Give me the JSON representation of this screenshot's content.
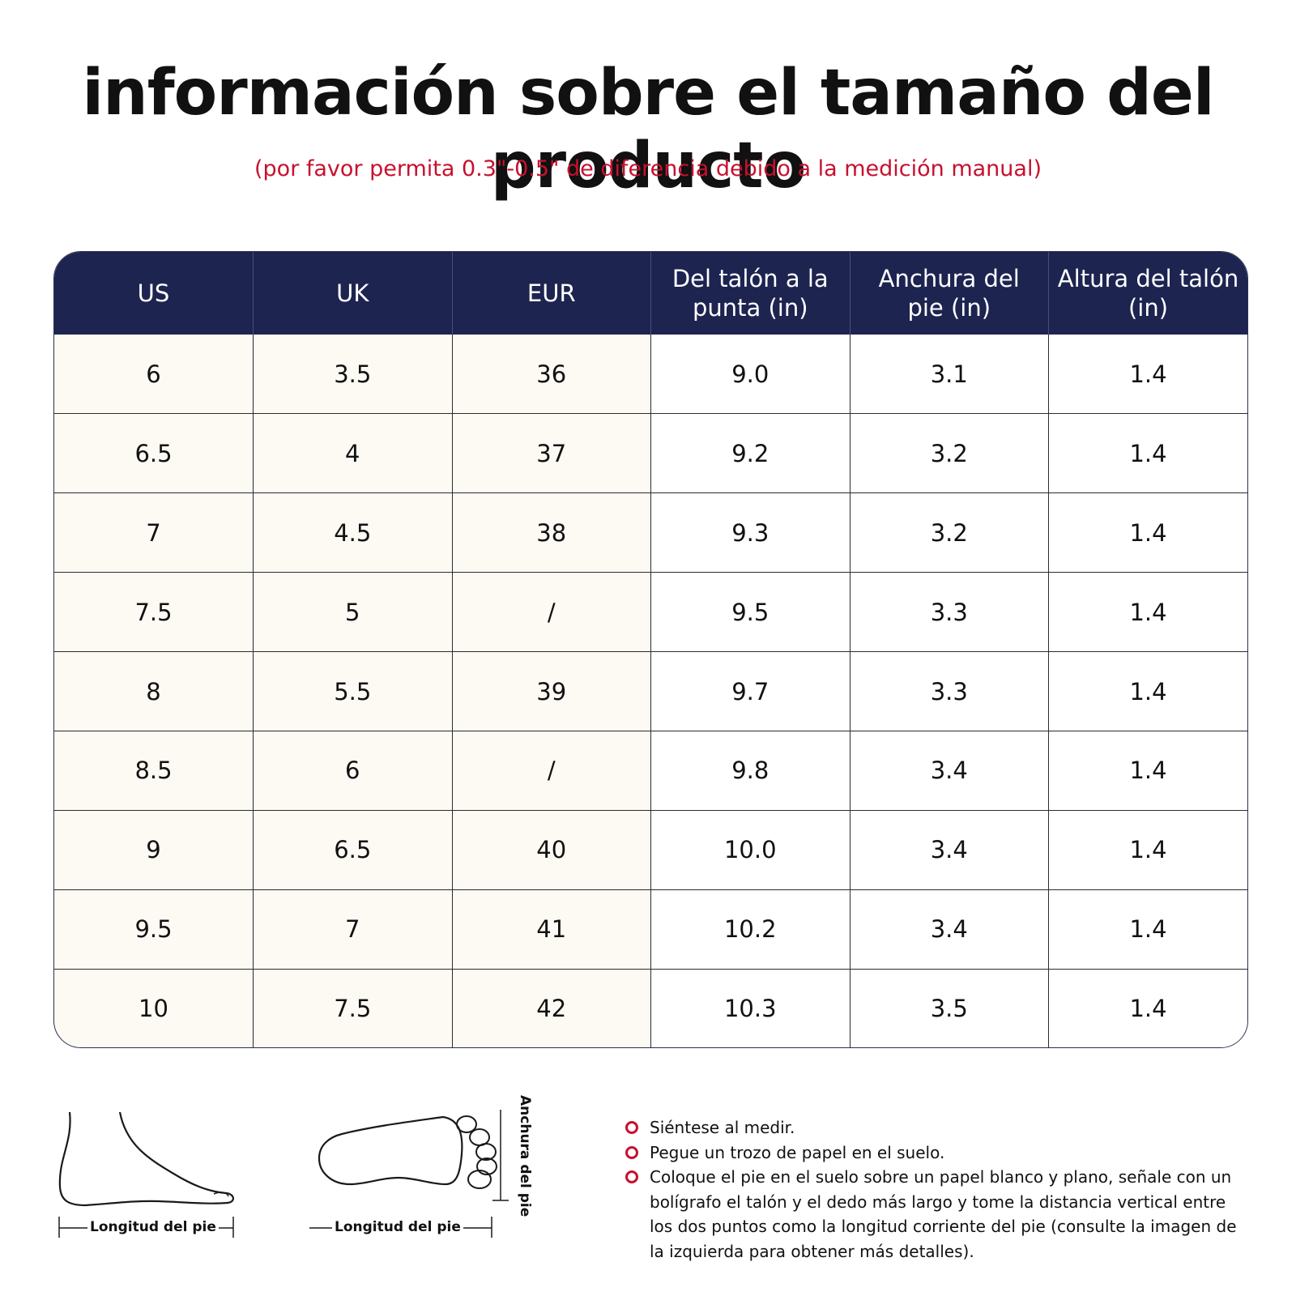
{
  "header": {
    "title": "información sobre el tamaño del producto",
    "subtitle": "(por favor permita 0.3\"-0.5\" de diferencia debido a la medición manual)"
  },
  "size_table": {
    "columns": [
      "US",
      "UK",
      "EUR",
      "Del talón a la punta (in)",
      "Anchura del pie (in)",
      "Altura del talón (in)"
    ],
    "rows": [
      [
        "6",
        "3.5",
        "36",
        "9.0",
        "3.1",
        "1.4"
      ],
      [
        "6.5",
        "4",
        "37",
        "9.2",
        "3.2",
        "1.4"
      ],
      [
        "7",
        "4.5",
        "38",
        "9.3",
        "3.2",
        "1.4"
      ],
      [
        "7.5",
        "5",
        "/",
        "9.5",
        "3.3",
        "1.4"
      ],
      [
        "8",
        "5.5",
        "39",
        "9.7",
        "3.3",
        "1.4"
      ],
      [
        "8.5",
        "6",
        "/",
        "9.8",
        "3.4",
        "1.4"
      ],
      [
        "9",
        "6.5",
        "40",
        "10.0",
        "3.4",
        "1.4"
      ],
      [
        "9.5",
        "7",
        "41",
        "10.2",
        "3.4",
        "1.4"
      ],
      [
        "10",
        "7.5",
        "42",
        "10.3",
        "3.5",
        "1.4"
      ]
    ]
  },
  "illustrations": {
    "side_length_label": "Longitud del pie",
    "top_length_label": "Longitud del pie",
    "width_label": "Anchura del pie"
  },
  "instructions": [
    "Siéntese al medir.",
    "Pegue un trozo de papel en el suelo.",
    "Coloque el pie en el suelo sobre un papel blanco y plano, señale con un bolígrafo el talón y el dedo más largo y tome la distancia vertical entre los dos puntos como la longitud corriente del pie (consulte la imagen de la izquierda para obtener más detalles)."
  ],
  "colors": {
    "header_bg": "#1d2450",
    "accent_red": "#c8102e",
    "cell_cream": "#fdfaf4"
  }
}
